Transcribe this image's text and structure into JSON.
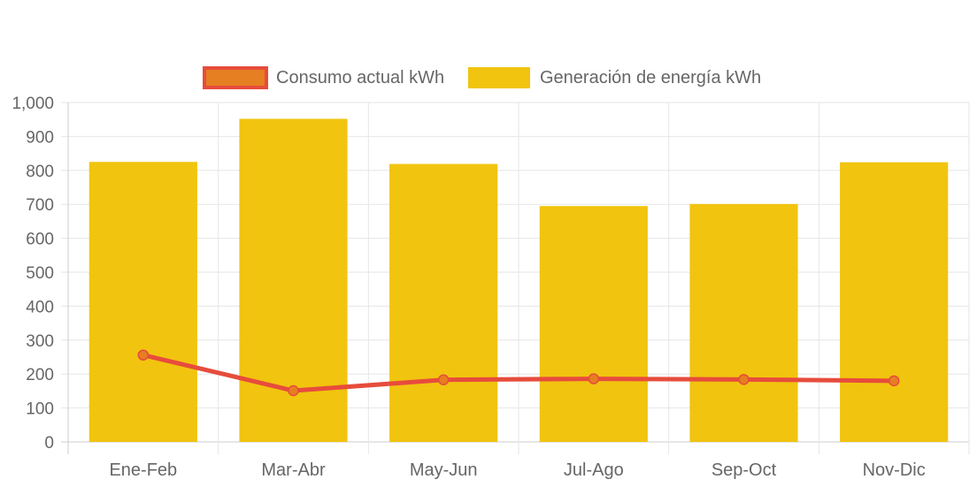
{
  "chart_data": {
    "type": "bar",
    "categories": [
      "Ene-Feb",
      "Mar-Abr",
      "May-Jun",
      "Jul-Ago",
      "Sep-Oct",
      "Nov-Dic"
    ],
    "series": [
      {
        "name": "Consumo actual kWh",
        "kind": "line",
        "values": [
          256,
          151,
          183,
          186,
          184,
          180
        ],
        "color": "#e74c3c",
        "point_fill": "#e67e22"
      },
      {
        "name": "Generación de energía kWh",
        "kind": "bar",
        "values": [
          825,
          952,
          819,
          695,
          701,
          824
        ],
        "color": "#f1c40f"
      }
    ],
    "y_ticks": [
      "0",
      "100",
      "200",
      "300",
      "400",
      "500",
      "600",
      "700",
      "800",
      "900",
      "1,000"
    ],
    "ylim": [
      0,
      1000
    ],
    "grid": true,
    "legend_position": "top",
    "title": "",
    "xlabel": "",
    "ylabel": ""
  },
  "colors": {
    "grid": "#e6e6e6",
    "axis": "#cccccc",
    "text": "#666666"
  }
}
